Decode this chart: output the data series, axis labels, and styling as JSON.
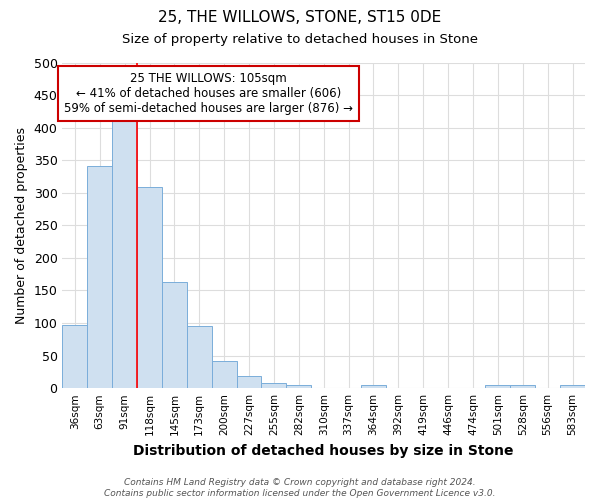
{
  "title": "25, THE WILLOWS, STONE, ST15 0DE",
  "subtitle": "Size of property relative to detached houses in Stone",
  "xlabel": "Distribution of detached houses by size in Stone",
  "ylabel": "Number of detached properties",
  "bar_color": "#cfe0f0",
  "bar_edge_color": "#7aadda",
  "categories": [
    "36sqm",
    "63sqm",
    "91sqm",
    "118sqm",
    "145sqm",
    "173sqm",
    "200sqm",
    "227sqm",
    "255sqm",
    "282sqm",
    "310sqm",
    "337sqm",
    "364sqm",
    "392sqm",
    "419sqm",
    "446sqm",
    "474sqm",
    "501sqm",
    "528sqm",
    "556sqm",
    "583sqm"
  ],
  "values": [
    97,
    341,
    413,
    309,
    163,
    95,
    42,
    18,
    8,
    5,
    0,
    0,
    5,
    0,
    0,
    0,
    0,
    5,
    5,
    0,
    5
  ],
  "ylim": [
    0,
    500
  ],
  "yticks": [
    0,
    50,
    100,
    150,
    200,
    250,
    300,
    350,
    400,
    450,
    500
  ],
  "red_line_x": 2.5,
  "annotation_text": "25 THE WILLOWS: 105sqm\n← 41% of detached houses are smaller (606)\n59% of semi-detached houses are larger (876) →",
  "annotation_box_color": "#ffffff",
  "annotation_box_edge": "#cc0000",
  "footnote": "Contains HM Land Registry data © Crown copyright and database right 2024.\nContains public sector information licensed under the Open Government Licence v3.0.",
  "background_color": "#ffffff",
  "grid_color": "#dddddd"
}
